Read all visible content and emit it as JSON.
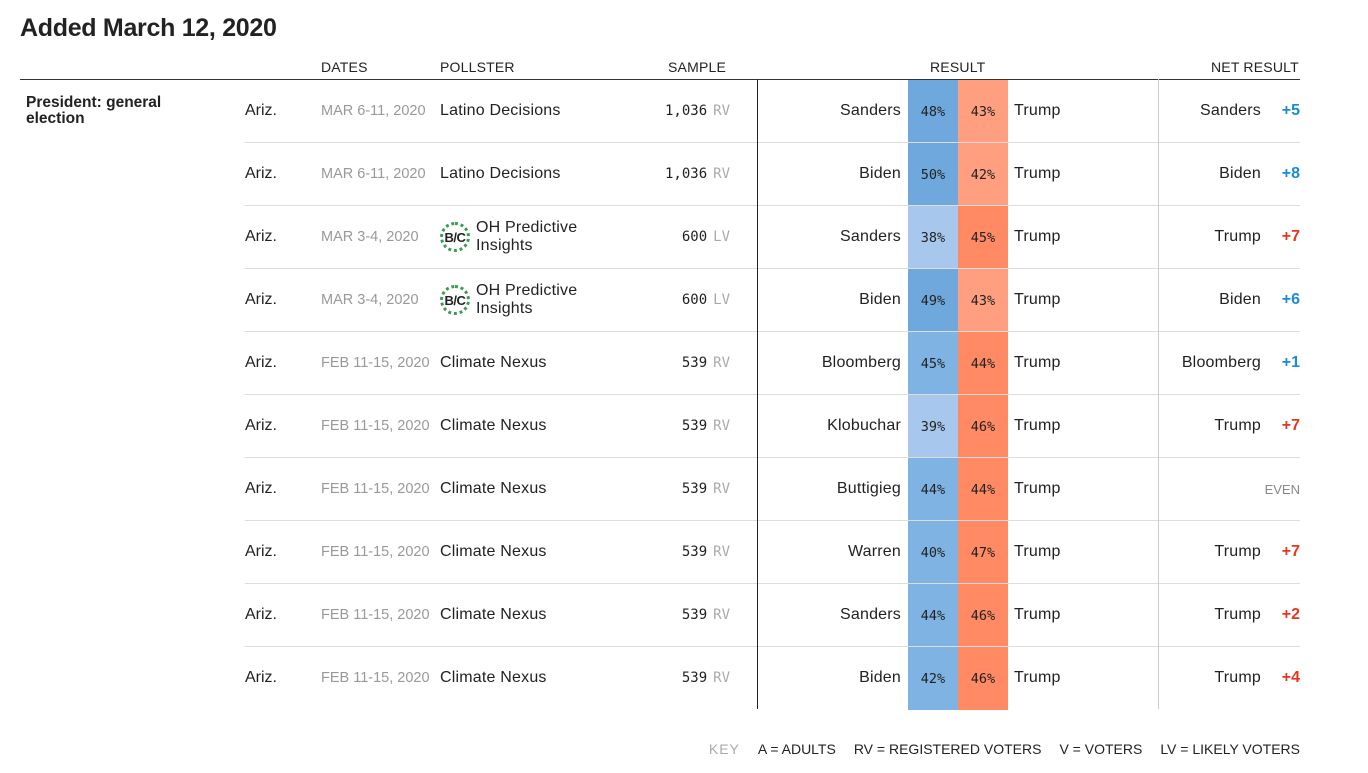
{
  "title": "Added March 12, 2020",
  "headers": {
    "dates": "DATES",
    "pollster": "POLLSTER",
    "sample": "SAMPLE",
    "result": "RESULT",
    "net_result": "NET RESULT"
  },
  "race_label": "President: general election",
  "colors": {
    "dem_dark": "#6fa8dc",
    "dem_mid": "#7eb3e3",
    "dem_light": "#a7c8ec",
    "rep_bright": "#ff8a63",
    "rep_light": "#ff9f80",
    "dem_text": "#1a8bd6",
    "rep_text": "#e8361c"
  },
  "rows": [
    {
      "state": "Ariz.",
      "dates": "MAR 6-11, 2020",
      "pollster": "Latino Decisions",
      "grade": "",
      "sample": "1,036",
      "population": "RV",
      "cand1": "Sanders",
      "pct1": "48%",
      "pct1_value": 48,
      "cand2": "Trump",
      "pct2": "43%",
      "pct2_value": 43,
      "net_name": "Sanders",
      "net_value": "+5",
      "net_party": "dem"
    },
    {
      "state": "Ariz.",
      "dates": "MAR 6-11, 2020",
      "pollster": "Latino Decisions",
      "grade": "",
      "sample": "1,036",
      "population": "RV",
      "cand1": "Biden",
      "pct1": "50%",
      "pct1_value": 50,
      "cand2": "Trump",
      "pct2": "42%",
      "pct2_value": 42,
      "net_name": "Biden",
      "net_value": "+8",
      "net_party": "dem"
    },
    {
      "state": "Ariz.",
      "dates": "MAR 3-4, 2020",
      "pollster": "OH Predictive Insights",
      "grade": "B/C",
      "sample": "600",
      "population": "LV",
      "cand1": "Sanders",
      "pct1": "38%",
      "pct1_value": 38,
      "cand2": "Trump",
      "pct2": "45%",
      "pct2_value": 45,
      "net_name": "Trump",
      "net_value": "+7",
      "net_party": "rep"
    },
    {
      "state": "Ariz.",
      "dates": "MAR 3-4, 2020",
      "pollster": "OH Predictive Insights",
      "grade": "B/C",
      "sample": "600",
      "population": "LV",
      "cand1": "Biden",
      "pct1": "49%",
      "pct1_value": 49,
      "cand2": "Trump",
      "pct2": "43%",
      "pct2_value": 43,
      "net_name": "Biden",
      "net_value": "+6",
      "net_party": "dem"
    },
    {
      "state": "Ariz.",
      "dates": "FEB 11-15, 2020",
      "pollster": "Climate Nexus",
      "grade": "",
      "sample": "539",
      "population": "RV",
      "cand1": "Bloomberg",
      "pct1": "45%",
      "pct1_value": 45,
      "cand2": "Trump",
      "pct2": "44%",
      "pct2_value": 44,
      "net_name": "Bloomberg",
      "net_value": "+1",
      "net_party": "dem"
    },
    {
      "state": "Ariz.",
      "dates": "FEB 11-15, 2020",
      "pollster": "Climate Nexus",
      "grade": "",
      "sample": "539",
      "population": "RV",
      "cand1": "Klobuchar",
      "pct1": "39%",
      "pct1_value": 39,
      "cand2": "Trump",
      "pct2": "46%",
      "pct2_value": 46,
      "net_name": "Trump",
      "net_value": "+7",
      "net_party": "rep"
    },
    {
      "state": "Ariz.",
      "dates": "FEB 11-15, 2020",
      "pollster": "Climate Nexus",
      "grade": "",
      "sample": "539",
      "population": "RV",
      "cand1": "Buttigieg",
      "pct1": "44%",
      "pct1_value": 44,
      "cand2": "Trump",
      "pct2": "44%",
      "pct2_value": 44,
      "net_name": "",
      "net_value": "EVEN",
      "net_party": "even"
    },
    {
      "state": "Ariz.",
      "dates": "FEB 11-15, 2020",
      "pollster": "Climate Nexus",
      "grade": "",
      "sample": "539",
      "population": "RV",
      "cand1": "Warren",
      "pct1": "40%",
      "pct1_value": 40,
      "cand2": "Trump",
      "pct2": "47%",
      "pct2_value": 47,
      "net_name": "Trump",
      "net_value": "+7",
      "net_party": "rep"
    },
    {
      "state": "Ariz.",
      "dates": "FEB 11-15, 2020",
      "pollster": "Climate Nexus",
      "grade": "",
      "sample": "539",
      "population": "RV",
      "cand1": "Sanders",
      "pct1": "44%",
      "pct1_value": 44,
      "cand2": "Trump",
      "pct2": "46%",
      "pct2_value": 46,
      "net_name": "Trump",
      "net_value": "+2",
      "net_party": "rep"
    },
    {
      "state": "Ariz.",
      "dates": "FEB 11-15, 2020",
      "pollster": "Climate Nexus",
      "grade": "",
      "sample": "539",
      "population": "RV",
      "cand1": "Biden",
      "pct1": "42%",
      "pct1_value": 42,
      "cand2": "Trump",
      "pct2": "46%",
      "pct2_value": 46,
      "net_name": "Trump",
      "net_value": "+4",
      "net_party": "rep"
    }
  ],
  "key": {
    "label": "KEY",
    "items": [
      "A = ADULTS",
      "RV = REGISTERED VOTERS",
      "V = VOTERS",
      "LV = LIKELY VOTERS"
    ]
  }
}
